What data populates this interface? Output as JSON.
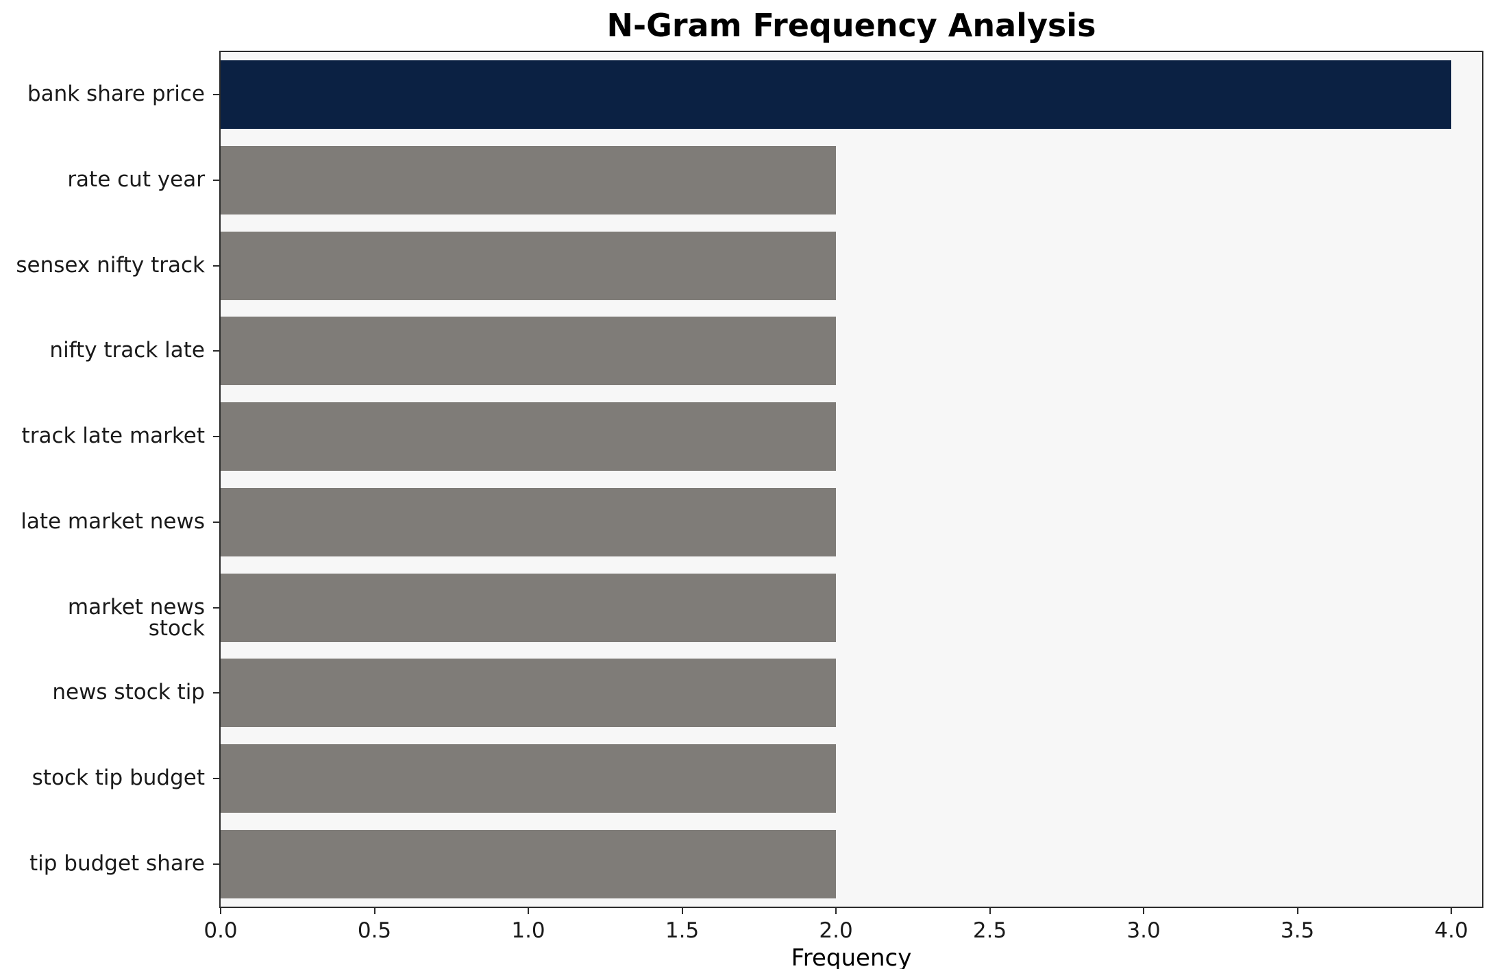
{
  "chart_data": {
    "type": "bar",
    "orientation": "horizontal",
    "title": "N-Gram Frequency Analysis",
    "xlabel": "Frequency",
    "ylabel": "",
    "categories": [
      "bank share price",
      "rate cut year",
      "sensex nifty track",
      "nifty track late",
      "track late market",
      "late market news",
      "market news stock",
      "news stock tip",
      "stock tip budget",
      "tip budget share"
    ],
    "values": [
      4,
      2,
      2,
      2,
      2,
      2,
      2,
      2,
      2,
      2
    ],
    "bar_colors": [
      "#0b2143",
      "#7f7c78",
      "#7f7c78",
      "#7f7c78",
      "#7f7c78",
      "#7f7c78",
      "#7f7c78",
      "#7f7c78",
      "#7f7c78",
      "#7f7c78"
    ],
    "xlim": [
      0,
      4.1
    ],
    "x_ticks": [
      0.0,
      0.5,
      1.0,
      1.5,
      2.0,
      2.5,
      3.0,
      3.5,
      4.0
    ],
    "x_tick_labels": [
      "0.0",
      "0.5",
      "1.0",
      "1.5",
      "2.0",
      "2.5",
      "3.0",
      "3.5",
      "4.0"
    ],
    "grid": false,
    "legend": "none",
    "plot_background": "#f7f7f7",
    "highlight_color": "#0b2143",
    "default_bar_color": "#7f7c78"
  }
}
